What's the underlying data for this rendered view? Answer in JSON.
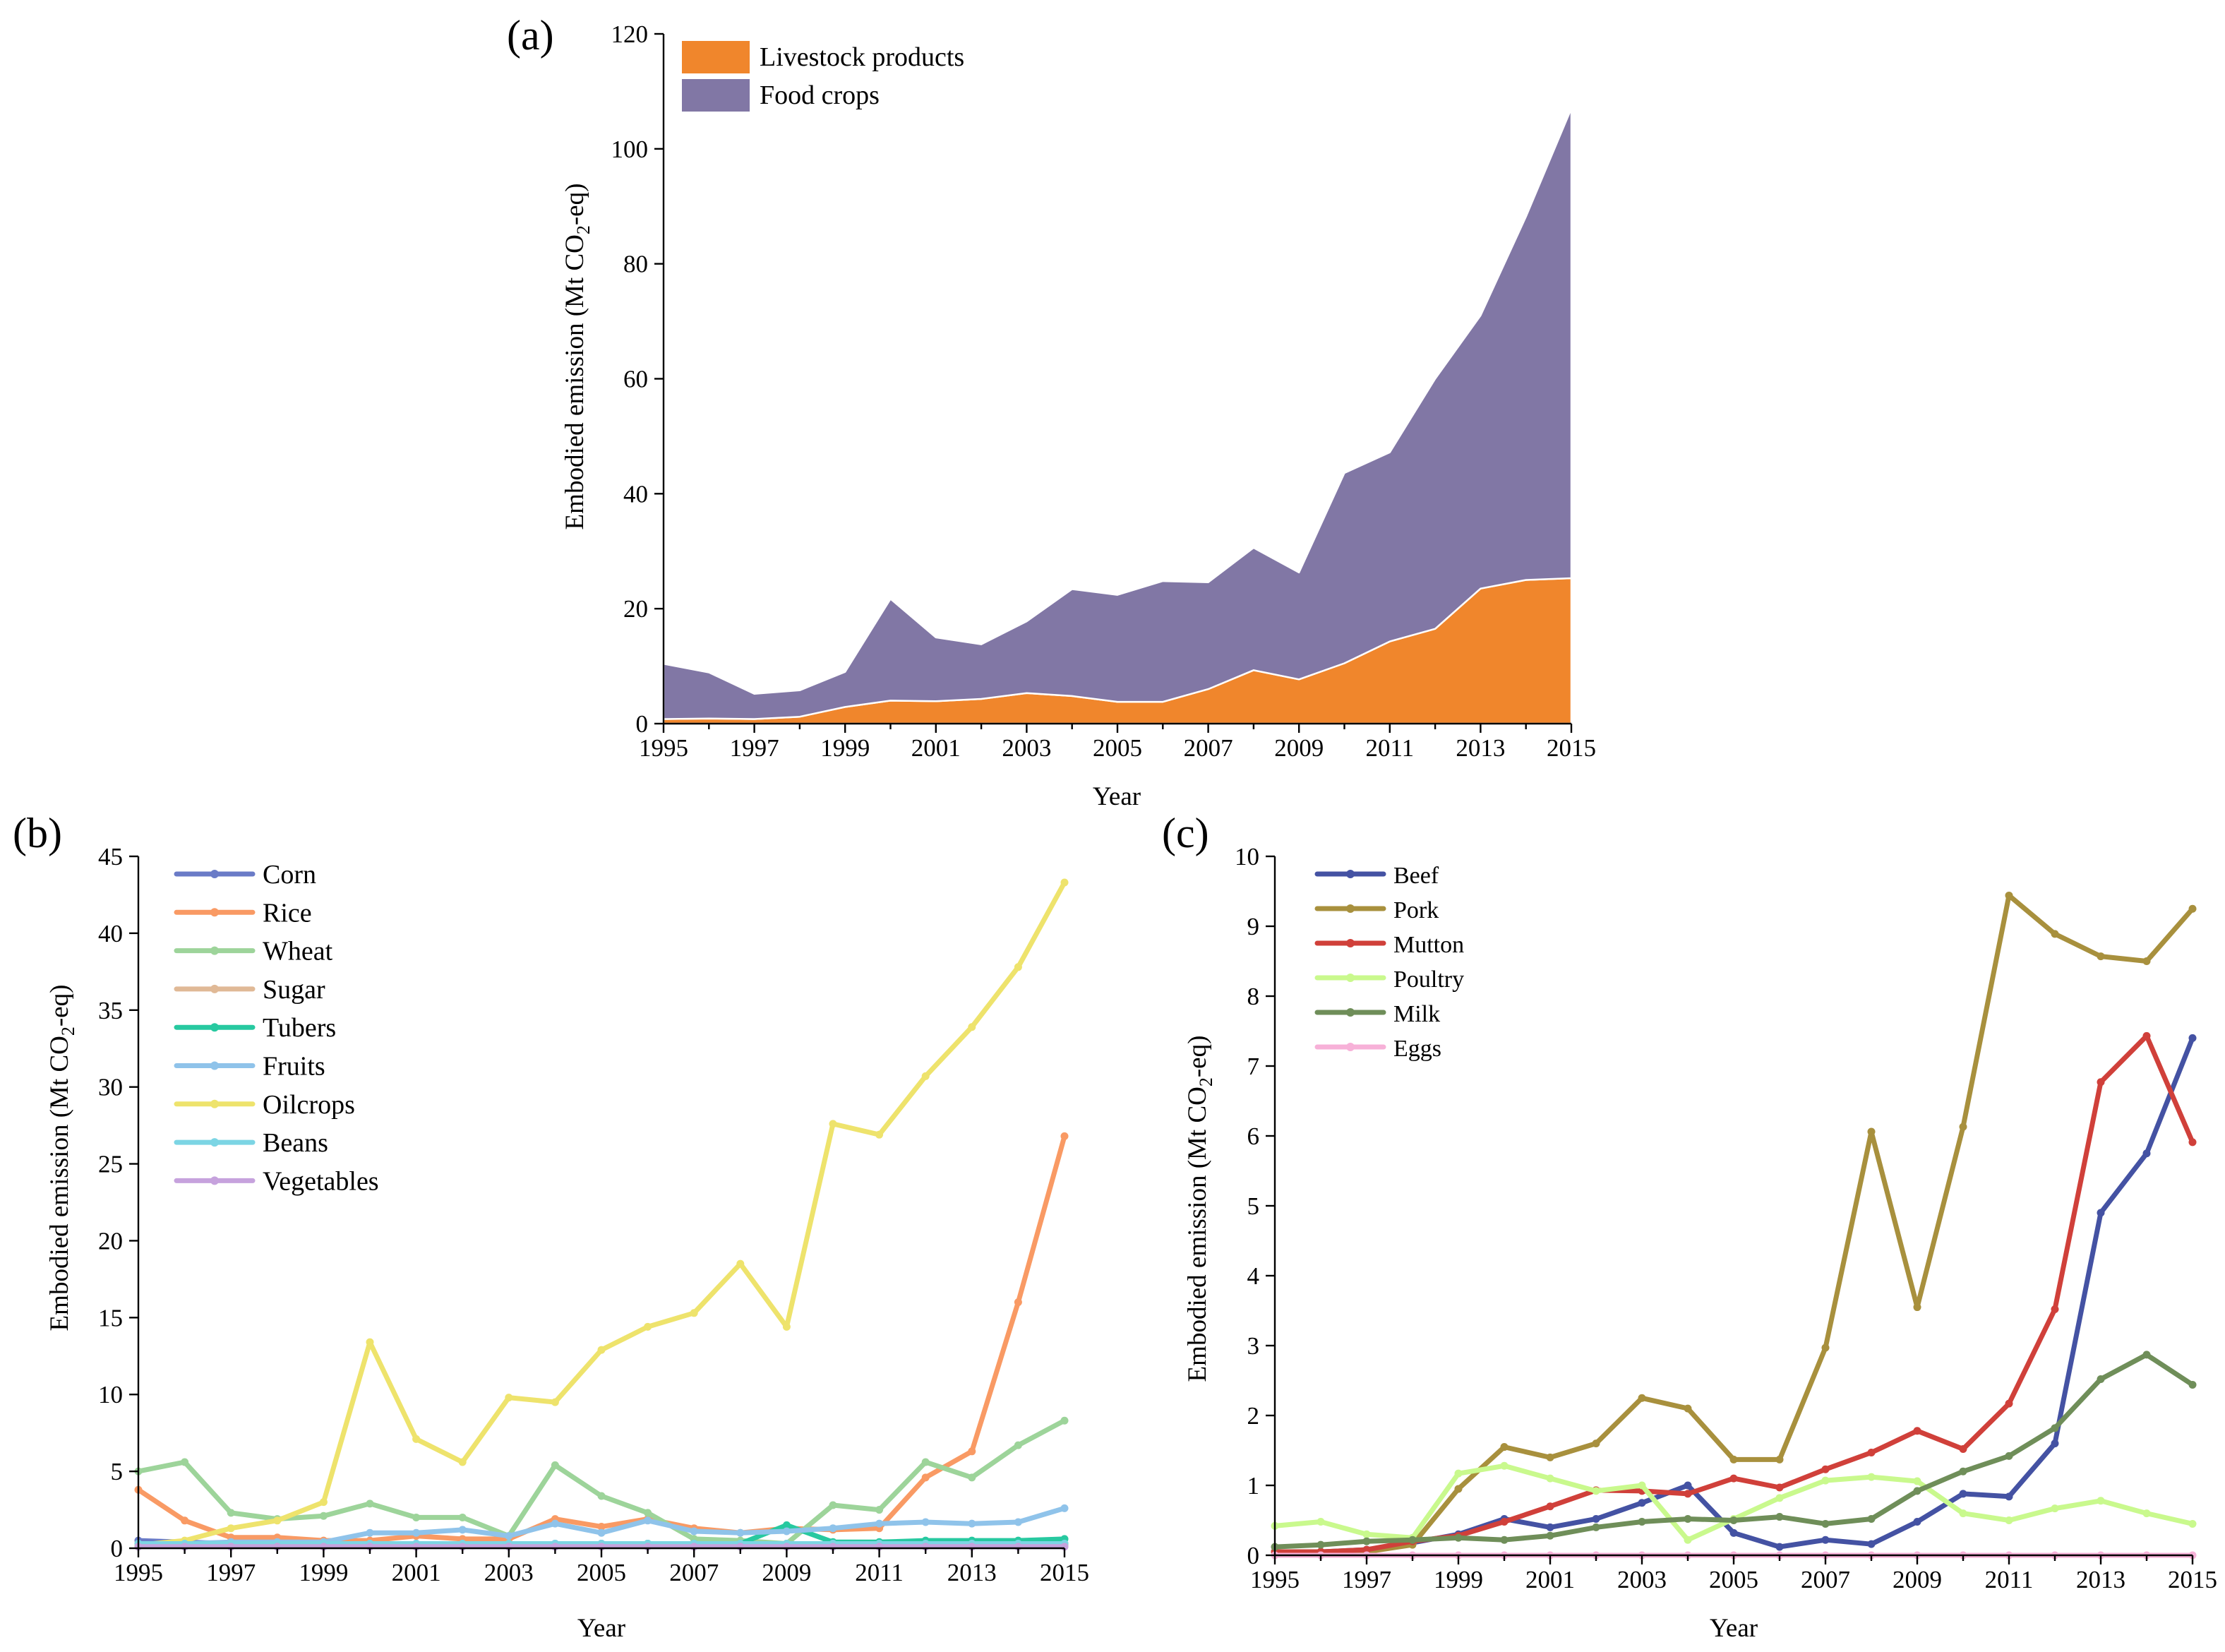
{
  "chart_data": [
    {
      "type": "area",
      "stacked": true,
      "panel_label": "(a)",
      "x": [
        1995,
        1996,
        1997,
        1998,
        1999,
        2000,
        2001,
        2002,
        2003,
        2004,
        2005,
        2006,
        2007,
        2008,
        2009,
        2010,
        2011,
        2012,
        2013,
        2014,
        2015
      ],
      "x_tick_labels": [
        "1995",
        "1997",
        "1999",
        "2001",
        "2003",
        "2005",
        "2007",
        "2009",
        "2011",
        "2013",
        "2015"
      ],
      "y_ticks": [
        0,
        20,
        40,
        60,
        80,
        100,
        120
      ],
      "xlim": [
        1995,
        2015
      ],
      "ylim": [
        0,
        120
      ],
      "xlabel": "Year",
      "ylabel_main": "Embodied emission (Mt  CO",
      "ylabel_sub": "2",
      "ylabel_end": "-eq)",
      "legend_position": "top-left",
      "series": [
        {
          "name": "Livestock products",
          "color": "#F0862C",
          "values": [
            0.8,
            0.9,
            0.8,
            1.2,
            2.9,
            4.0,
            3.9,
            4.3,
            5.3,
            4.8,
            3.8,
            3.8,
            6.0,
            9.3,
            7.7,
            10.5,
            14.3,
            16.5,
            23.5,
            25.0,
            25.3
          ]
        },
        {
          "name": "Food crops",
          "color": "#8177A5",
          "values": [
            9.6,
            8.0,
            4.4,
            4.6,
            6.1,
            17.7,
            11.1,
            9.5,
            12.5,
            18.6,
            18.6,
            21.0,
            18.6,
            21.3,
            18.6,
            33.1,
            32.9,
            43.5,
            47.5,
            63.2,
            81.7
          ]
        }
      ]
    },
    {
      "type": "line",
      "panel_label": "(b)",
      "x": [
        1995,
        1996,
        1997,
        1998,
        1999,
        2000,
        2001,
        2002,
        2003,
        2004,
        2005,
        2006,
        2007,
        2008,
        2009,
        2010,
        2011,
        2012,
        2013,
        2014,
        2015
      ],
      "x_tick_labels": [
        "1995",
        "1997",
        "1999",
        "2001",
        "2003",
        "2005",
        "2007",
        "2009",
        "2011",
        "2013",
        "2015"
      ],
      "y_ticks": [
        0,
        5,
        10,
        15,
        20,
        25,
        30,
        35,
        40,
        45
      ],
      "xlim": [
        1995,
        2015
      ],
      "ylim": [
        0,
        45
      ],
      "xlabel": "Year",
      "ylabel_main": "Embodied emission (Mt  CO",
      "ylabel_sub": "2",
      "ylabel_end": "-eq)",
      "legend_position": "top-left",
      "series": [
        {
          "name": "Corn",
          "color": "#6A7BC7",
          "values": [
            0.5,
            0.4,
            0.3,
            0.3,
            0.3,
            0.3,
            0.3,
            0.3,
            0.3,
            0.3,
            0.3,
            0.3,
            0.3,
            0.3,
            0.3,
            0.3,
            0.3,
            0.3,
            0.3,
            0.3,
            0.3
          ]
        },
        {
          "name": "Rice",
          "color": "#F99A64",
          "values": [
            3.8,
            1.8,
            0.7,
            0.7,
            0.5,
            0.5,
            0.8,
            0.6,
            0.6,
            1.9,
            1.4,
            1.9,
            1.3,
            1.0,
            1.3,
            1.2,
            1.3,
            4.6,
            6.3,
            16.0,
            26.8
          ]
        },
        {
          "name": "Wheat",
          "color": "#9DD49A",
          "values": [
            5.0,
            5.6,
            2.3,
            1.9,
            2.1,
            2.9,
            2.0,
            2.0,
            0.8,
            5.4,
            3.4,
            2.3,
            0.6,
            0.5,
            0.3,
            2.8,
            2.5,
            5.6,
            4.6,
            6.7,
            8.3
          ]
        },
        {
          "name": "Sugar",
          "color": "#E0B996",
          "values": [
            0.2,
            0.2,
            0.2,
            0.2,
            0.2,
            0.2,
            0.2,
            0.2,
            0.2,
            0.2,
            0.2,
            0.2,
            0.2,
            0.2,
            0.2,
            0.2,
            0.2,
            0.2,
            0.2,
            0.2,
            0.2
          ]
        },
        {
          "name": "Tubers",
          "color": "#27C9A0",
          "values": [
            0.2,
            0.2,
            0.2,
            0.2,
            0.2,
            0.2,
            0.2,
            0.2,
            0.2,
            0.2,
            0.2,
            0.3,
            0.3,
            0.3,
            1.5,
            0.4,
            0.4,
            0.5,
            0.5,
            0.5,
            0.6
          ]
        },
        {
          "name": "Fruits",
          "color": "#8FC3EA",
          "values": [
            0.3,
            0.3,
            0.4,
            0.4,
            0.4,
            1.0,
            1.0,
            1.2,
            0.8,
            1.6,
            1.0,
            1.8,
            1.1,
            1.0,
            1.1,
            1.3,
            1.6,
            1.7,
            1.6,
            1.7,
            2.6
          ]
        },
        {
          "name": "Oilcrops",
          "color": "#EEE36C",
          "values": [
            0.2,
            0.5,
            1.3,
            1.8,
            3.0,
            13.4,
            7.1,
            5.6,
            9.8,
            9.5,
            12.9,
            14.4,
            15.3,
            18.5,
            14.4,
            27.6,
            26.9,
            30.7,
            33.9,
            37.8,
            43.3
          ]
        },
        {
          "name": "Beans",
          "color": "#7CD5E4",
          "values": [
            0.3,
            0.3,
            0.3,
            0.3,
            0.3,
            0.3,
            0.3,
            0.3,
            0.3,
            0.3,
            0.3,
            0.3,
            0.3,
            0.3,
            0.3,
            0.3,
            0.3,
            0.3,
            0.3,
            0.3,
            0.3
          ]
        },
        {
          "name": "Vegetables",
          "color": "#C6A2DD",
          "values": [
            0.1,
            0.1,
            0.1,
            0.1,
            0.1,
            0.1,
            0.1,
            0.1,
            0.1,
            0.1,
            0.1,
            0.1,
            0.1,
            0.1,
            0.1,
            0.1,
            0.1,
            0.1,
            0.1,
            0.1,
            0.1
          ]
        }
      ]
    },
    {
      "type": "line",
      "panel_label": "(c)",
      "x": [
        1995,
        1996,
        1997,
        1998,
        1999,
        2000,
        2001,
        2002,
        2003,
        2004,
        2005,
        2006,
        2007,
        2008,
        2009,
        2010,
        2011,
        2012,
        2013,
        2014,
        2015
      ],
      "x_tick_labels": [
        "1995",
        "1997",
        "1999",
        "2001",
        "2003",
        "2005",
        "2007",
        "2009",
        "2011",
        "2013",
        "2015"
      ],
      "y_ticks": [
        0,
        1,
        2,
        3,
        4,
        5,
        6,
        7,
        8,
        9,
        10
      ],
      "xlim": [
        1995,
        2015
      ],
      "ylim": [
        0,
        10
      ],
      "xlabel": "Year",
      "ylabel_main": "Embodied emission (Mt  CO",
      "ylabel_sub": "2",
      "ylabel_end": "-eq)",
      "legend_position": "top-left",
      "series": [
        {
          "name": "Beef",
          "color": "#4452A3",
          "values": [
            0.05,
            0.05,
            0.08,
            0.18,
            0.3,
            0.52,
            0.4,
            0.52,
            0.75,
            1.0,
            0.32,
            0.12,
            0.22,
            0.16,
            0.48,
            0.88,
            0.84,
            1.6,
            4.9,
            5.75,
            7.4
          ]
        },
        {
          "name": "Pork",
          "color": "#A8903D",
          "values": [
            0.05,
            0.05,
            0.05,
            0.15,
            0.95,
            1.55,
            1.4,
            1.6,
            2.25,
            2.1,
            1.37,
            1.37,
            2.97,
            6.06,
            3.55,
            6.13,
            9.44,
            8.89,
            8.57,
            8.5,
            9.25
          ]
        },
        {
          "name": "Mutton",
          "color": "#D0403A",
          "values": [
            0.05,
            0.05,
            0.08,
            0.2,
            0.28,
            0.48,
            0.7,
            0.93,
            0.92,
            0.88,
            1.1,
            0.97,
            1.23,
            1.47,
            1.78,
            1.52,
            2.17,
            3.52,
            6.77,
            7.43,
            5.91
          ]
        },
        {
          "name": "Poultry",
          "color": "#C9F98D",
          "values": [
            0.42,
            0.48,
            0.3,
            0.25,
            1.17,
            1.28,
            1.1,
            0.92,
            1.0,
            0.22,
            0.52,
            0.82,
            1.07,
            1.12,
            1.06,
            0.6,
            0.5,
            0.67,
            0.78,
            0.6,
            0.45
          ]
        },
        {
          "name": "Milk",
          "color": "#6F8E59",
          "values": [
            0.12,
            0.15,
            0.2,
            0.22,
            0.25,
            0.22,
            0.28,
            0.4,
            0.48,
            0.52,
            0.5,
            0.55,
            0.45,
            0.52,
            0.92,
            1.2,
            1.42,
            1.82,
            2.52,
            2.87,
            2.44
          ]
        },
        {
          "name": "Eggs",
          "color": "#F7B1D8",
          "values": [
            0.0,
            0.0,
            0.0,
            0.0,
            0.0,
            0.0,
            0.0,
            0.0,
            0.0,
            0.0,
            0.0,
            0.0,
            0.0,
            0.0,
            0.0,
            0.0,
            0.0,
            0.0,
            0.0,
            0.0,
            0.0
          ]
        }
      ]
    }
  ]
}
